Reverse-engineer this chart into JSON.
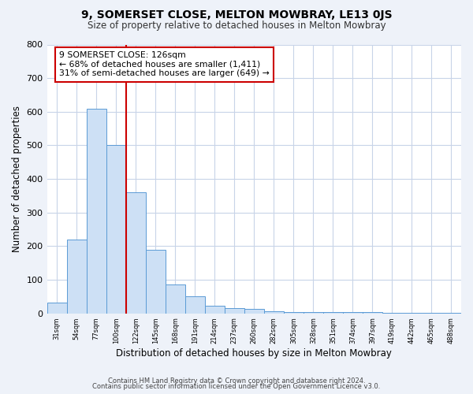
{
  "title1": "9, SOMERSET CLOSE, MELTON MOWBRAY, LE13 0JS",
  "title2": "Size of property relative to detached houses in Melton Mowbray",
  "xlabel": "Distribution of detached houses by size in Melton Mowbray",
  "ylabel": "Number of detached properties",
  "bin_labels": [
    "31sqm",
    "54sqm",
    "77sqm",
    "100sqm",
    "122sqm",
    "145sqm",
    "168sqm",
    "191sqm",
    "214sqm",
    "237sqm",
    "260sqm",
    "282sqm",
    "305sqm",
    "328sqm",
    "351sqm",
    "374sqm",
    "397sqm",
    "419sqm",
    "442sqm",
    "465sqm",
    "488sqm"
  ],
  "bar_heights": [
    32,
    220,
    610,
    500,
    360,
    190,
    85,
    50,
    22,
    15,
    13,
    6,
    5,
    5,
    3,
    3,
    3,
    2,
    2,
    1,
    1
  ],
  "bar_color": "#cde0f5",
  "bar_edge_color": "#5b9bd5",
  "vline_color": "#cc0000",
  "annotation_text": "9 SOMERSET CLOSE: 126sqm\n← 68% of detached houses are smaller (1,411)\n31% of semi-detached houses are larger (649) →",
  "annotation_box_edge": "#cc0000",
  "ylim": [
    0,
    800
  ],
  "yticks": [
    0,
    100,
    200,
    300,
    400,
    500,
    600,
    700,
    800
  ],
  "footer1": "Contains HM Land Registry data © Crown copyright and database right 2024.",
  "footer2": "Contains public sector information licensed under the Open Government Licence v3.0.",
  "bg_color": "#eef2f9",
  "plot_bg_color": "#ffffff",
  "grid_color": "#c8d4e8"
}
